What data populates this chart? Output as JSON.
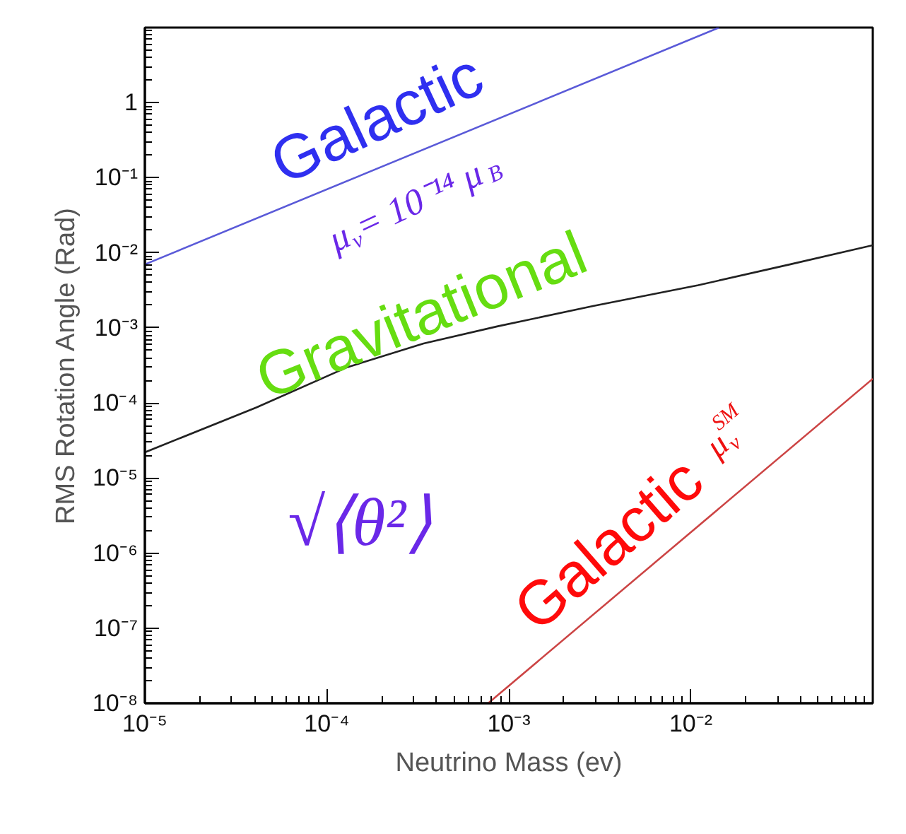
{
  "chart_data": {
    "type": "line",
    "xlabel": "Neutrino Mass (ev)",
    "ylabel": "RMS Rotation Angle (Rad)",
    "log": "xy",
    "grid": false,
    "marker": "none",
    "line_style": "solid",
    "xlim": [
      1e-05,
      0.1
    ],
    "ylim": [
      1e-08,
      10
    ],
    "xticks": [
      {
        "value": 1e-05,
        "label": "10⁻⁵"
      },
      {
        "value": 0.0001,
        "label": "10⁻⁴"
      },
      {
        "value": 0.001,
        "label": "10⁻³"
      },
      {
        "value": 0.01,
        "label": "10⁻²"
      }
    ],
    "yticks": [
      {
        "value": 1e-08,
        "label": "10⁻⁸"
      },
      {
        "value": 1e-07,
        "label": "10⁻⁷"
      },
      {
        "value": 1e-06,
        "label": "10⁻⁶"
      },
      {
        "value": 1e-05,
        "label": "10⁻⁵"
      },
      {
        "value": 0.0001,
        "label": "10⁻⁴"
      },
      {
        "value": 0.001,
        "label": "10⁻³"
      },
      {
        "value": 0.01,
        "label": "10⁻²"
      },
      {
        "value": 0.1,
        "label": "10⁻¹"
      },
      {
        "value": 1,
        "label": "1"
      }
    ],
    "series": [
      {
        "color": "#5a5ad8",
        "x": [
          1e-05,
          0.0143
        ],
        "values": [
          0.007,
          10
        ]
      },
      {
        "color": "#222222",
        "x": [
          1e-05,
          4.1e-05,
          0.00013,
          0.00034,
          0.00087,
          0.0029,
          0.011,
          0.035,
          0.1
        ],
        "values": [
          2.2e-05,
          8.7e-05,
          0.0003,
          0.00062,
          0.00105,
          0.00195,
          0.0037,
          0.007,
          0.0126
        ]
      },
      {
        "color": "#cc4444",
        "x": [
          0.00077,
          0.1
        ],
        "values": [
          1e-08,
          0.00021
        ]
      }
    ],
    "annotations": [
      "Galactic",
      "μ$_{ν}$ = 10⁻¹⁴ μ$_{B}$",
      "Gravitational",
      "√⟨θ²⟩",
      "Galactic",
      "μ$_{ν}$$^{SM}$"
    ]
  }
}
